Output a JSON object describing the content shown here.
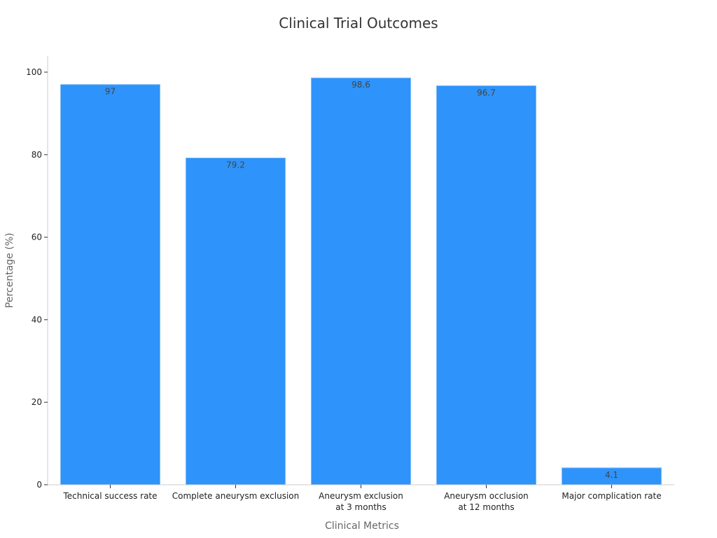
{
  "chart_data": {
    "type": "bar",
    "title": "Clinical Trial Outcomes",
    "xlabel": "Clinical Metrics",
    "ylabel": "Percentage (%)",
    "categories": [
      [
        "Technical success rate"
      ],
      [
        "Complete aneurysm exclusion"
      ],
      [
        "Aneurysm exclusion",
        "at 3 months"
      ],
      [
        "Aneurysm occlusion",
        "at 12 months"
      ],
      [
        "Major complication rate"
      ]
    ],
    "values": [
      97,
      79.2,
      98.6,
      96.7,
      4.1
    ],
    "value_labels": [
      "97",
      "79.2",
      "98.6",
      "96.7",
      "4.1"
    ],
    "yticks": [
      0,
      20,
      40,
      60,
      80,
      100
    ],
    "ylim": [
      0,
      100
    ],
    "grid": false,
    "colors": {
      "bar": "#2e93fa",
      "bar_edge": "#7fbdf5",
      "axis": "#cccccc",
      "tick": "#333333"
    }
  }
}
